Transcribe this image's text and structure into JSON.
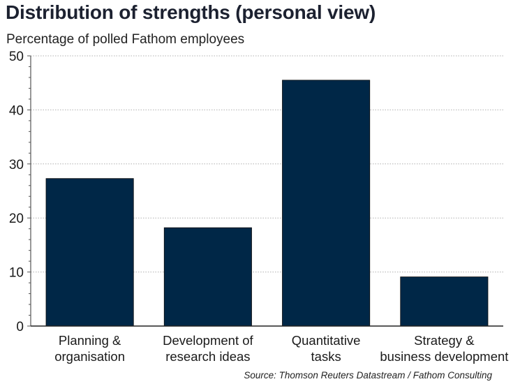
{
  "title": "Distribution of strengths (personal view)",
  "subtitle": "Percentage of polled Fathom employees",
  "source": "Source: Thomson Reuters Datastream / Fathom Consulting",
  "colors": {
    "bar": "#002747",
    "grid": "#b0b0b0",
    "axis": "#555555"
  },
  "chart_data": {
    "type": "bar",
    "categories": [
      [
        "Planning &",
        "organisation"
      ],
      [
        "Development of",
        "research ideas"
      ],
      [
        "Quantitative",
        "tasks"
      ],
      [
        "Strategy &",
        "business development"
      ]
    ],
    "values": [
      27.3,
      18.2,
      45.5,
      9.1
    ],
    "ylim": [
      0,
      50
    ],
    "yticks": [
      0,
      10,
      20,
      30,
      40,
      50
    ],
    "grid": true,
    "legend": "none"
  }
}
